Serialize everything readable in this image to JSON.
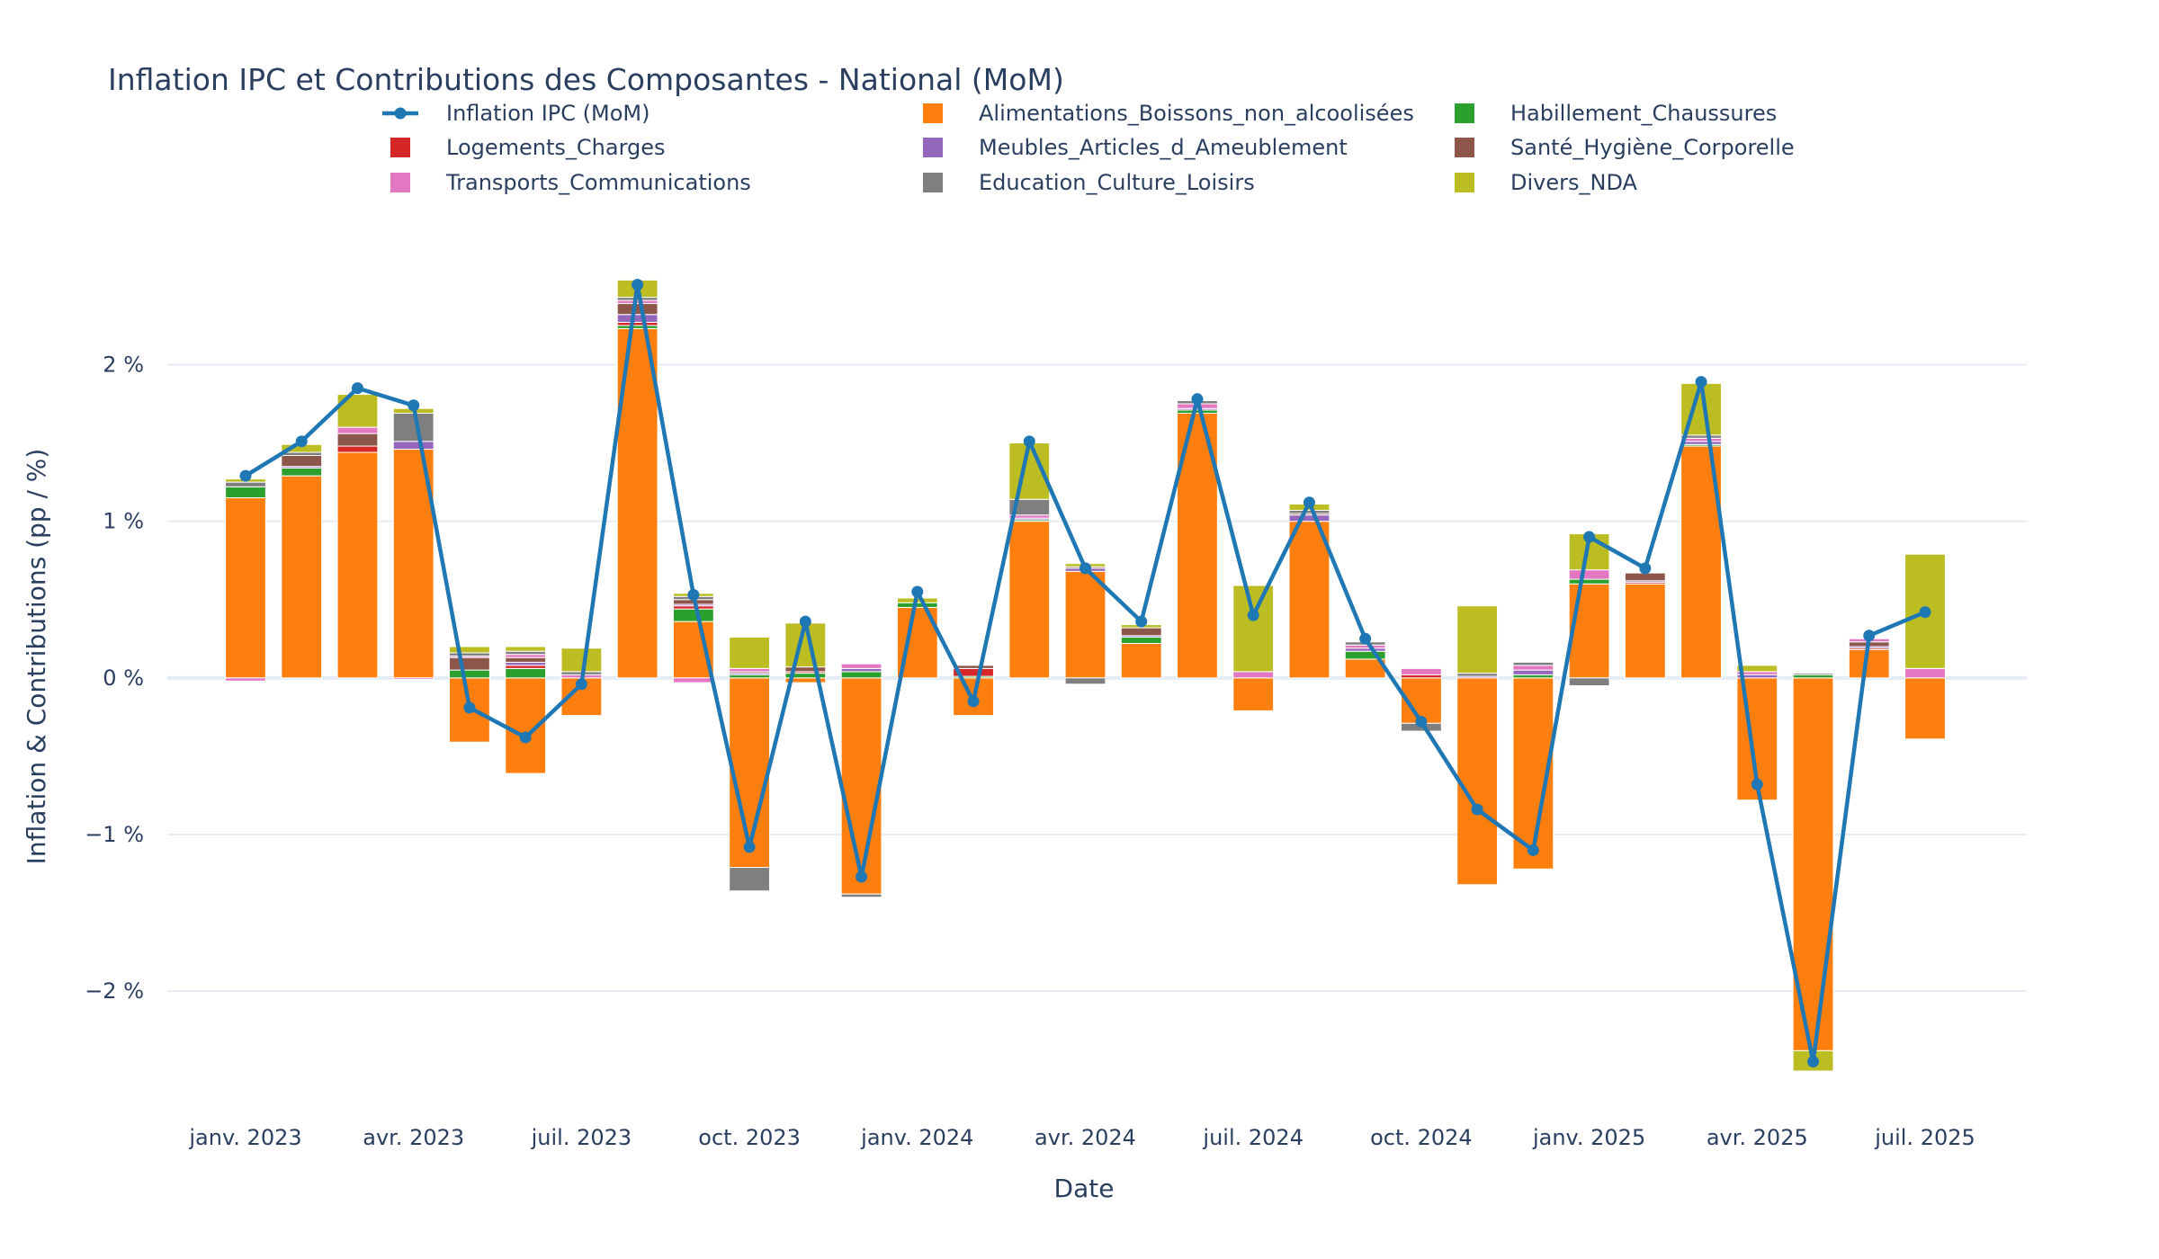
{
  "chart_data": {
    "type": "bar",
    "barmode": "relative",
    "title": "Inflation IPC et Contributions des Composantes - National (MoM)",
    "xlabel": "Date",
    "ylabel": "Inflation & Contributions (pp / %)",
    "ylim": [
      -2.82,
      2.95
    ],
    "y_ticks": [
      {
        "value": 2,
        "label": "2 %"
      },
      {
        "value": 1,
        "label": "1 %"
      },
      {
        "value": 0,
        "label": "0 %"
      },
      {
        "value": -1,
        "label": "−1 %"
      },
      {
        "value": -2,
        "label": "−2 %"
      }
    ],
    "x": [
      "2023-01",
      "2023-02",
      "2023-03",
      "2023-04",
      "2023-05",
      "2023-06",
      "2023-07",
      "2023-08",
      "2023-09",
      "2023-10",
      "2023-11",
      "2023-12",
      "2024-01",
      "2024-02",
      "2024-03",
      "2024-04",
      "2024-05",
      "2024-06",
      "2024-07",
      "2024-08",
      "2024-09",
      "2024-10",
      "2024-11",
      "2024-12",
      "2025-01",
      "2025-02",
      "2025-03",
      "2025-04",
      "2025-05",
      "2025-06",
      "2025-07"
    ],
    "x_ticks": [
      {
        "x": "2023-01",
        "label": "janv. 2023"
      },
      {
        "x": "2023-04",
        "label": "avr. 2023"
      },
      {
        "x": "2023-07",
        "label": "juil. 2023"
      },
      {
        "x": "2023-10",
        "label": "oct. 2023"
      },
      {
        "x": "2024-01",
        "label": "janv. 2024"
      },
      {
        "x": "2024-04",
        "label": "avr. 2024"
      },
      {
        "x": "2024-07",
        "label": "juil. 2024"
      },
      {
        "x": "2024-10",
        "label": "oct. 2024"
      },
      {
        "x": "2025-01",
        "label": "janv. 2025"
      },
      {
        "x": "2025-04",
        "label": "avr. 2025"
      },
      {
        "x": "2025-07",
        "label": "juil. 2025"
      }
    ],
    "line": {
      "name": "Inflation IPC (MoM)",
      "color": "#1f77b4",
      "values": [
        1.29,
        1.51,
        1.85,
        1.74,
        -0.19,
        -0.38,
        -0.04,
        2.51,
        0.53,
        -1.08,
        0.36,
        -1.27,
        0.55,
        -0.15,
        1.51,
        0.7,
        0.36,
        1.78,
        0.4,
        1.12,
        0.25,
        -0.28,
        -0.84,
        -1.1,
        0.9,
        0.7,
        1.89,
        -0.68,
        -2.45,
        0.27,
        0.42
      ]
    },
    "series": [
      {
        "name": "Alimentations_Boissons_non_alcoolisées",
        "color": "#ff7f0e",
        "values": [
          1.15,
          1.29,
          1.44,
          1.46,
          -0.41,
          -0.61,
          -0.24,
          2.23,
          0.36,
          -1.21,
          -0.03,
          -1.38,
          0.45,
          -0.24,
          1.0,
          0.68,
          0.22,
          1.69,
          -0.21,
          1.0,
          0.12,
          -0.29,
          -1.32,
          -1.22,
          0.6,
          0.6,
          1.48,
          -0.78,
          -2.38,
          0.18,
          -0.39
        ]
      },
      {
        "name": "Habillement_Chaussures",
        "color": "#2ca02c",
        "values": [
          0.07,
          0.05,
          0.0,
          0.0,
          0.05,
          0.06,
          0.0,
          0.02,
          0.08,
          0.02,
          0.03,
          0.04,
          0.03,
          0.01,
          0.01,
          0.0,
          0.04,
          0.02,
          0.0,
          0.0,
          0.05,
          0.0,
          0.0,
          0.02,
          0.03,
          0.0,
          0.01,
          0.0,
          0.02,
          0.0,
          0.0
        ]
      },
      {
        "name": "Logements_Charges",
        "color": "#d62728",
        "values": [
          0.0,
          0.0,
          0.04,
          0.0,
          0.0,
          0.02,
          0.0,
          0.02,
          0.02,
          0.0,
          0.01,
          0.0,
          0.0,
          0.05,
          0.0,
          0.0,
          0.0,
          0.0,
          0.0,
          0.0,
          0.0,
          0.02,
          0.0,
          0.0,
          0.0,
          0.01,
          0.0,
          0.0,
          0.0,
          0.01,
          0.0
        ]
      },
      {
        "name": "Meubles_Articles_d_Ameublement",
        "color": "#9467bd",
        "values": [
          0.0,
          0.01,
          0.0,
          0.05,
          0.0,
          0.02,
          0.0,
          0.05,
          0.01,
          0.01,
          0.0,
          0.02,
          0.0,
          0.0,
          0.01,
          0.02,
          0.01,
          0.01,
          0.0,
          0.04,
          0.02,
          0.0,
          0.01,
          0.03,
          0.0,
          0.01,
          0.02,
          0.02,
          0.0,
          0.01,
          0.0
        ]
      },
      {
        "name": "Santé_Hygiène_Corporelle",
        "color": "#8c564b",
        "values": [
          0.0,
          0.07,
          0.08,
          0.0,
          0.08,
          0.03,
          0.0,
          0.07,
          0.03,
          0.01,
          0.03,
          0.0,
          0.0,
          0.02,
          0.0,
          0.01,
          0.05,
          0.0,
          0.0,
          0.01,
          0.0,
          0.0,
          0.0,
          0.0,
          0.0,
          0.05,
          0.0,
          0.0,
          0.0,
          0.03,
          0.0
        ]
      },
      {
        "name": "Transports_Communications",
        "color": "#e377c2",
        "values": [
          -0.02,
          0.0,
          0.04,
          -0.01,
          0.01,
          0.02,
          0.02,
          0.02,
          -0.03,
          0.02,
          0.0,
          0.03,
          0.0,
          0.0,
          0.02,
          0.0,
          0.0,
          0.03,
          0.04,
          0.0,
          0.02,
          0.04,
          0.0,
          0.03,
          0.06,
          0.0,
          0.02,
          0.02,
          0.0,
          0.02,
          0.06
        ]
      },
      {
        "name": "Education_Culture_Loisirs",
        "color": "#7f7f7f",
        "values": [
          0.03,
          0.02,
          0.0,
          0.18,
          0.02,
          0.02,
          0.02,
          0.02,
          0.02,
          -0.15,
          0.0,
          -0.02,
          0.0,
          0.0,
          0.1,
          -0.04,
          0.0,
          0.02,
          0.0,
          0.02,
          0.02,
          -0.05,
          0.02,
          0.02,
          -0.05,
          0.0,
          0.02,
          0.0,
          0.01,
          0.0,
          0.0
        ]
      },
      {
        "name": "Divers_NDA",
        "color": "#bcbd22",
        "values": [
          0.02,
          0.05,
          0.21,
          0.03,
          0.04,
          0.03,
          0.15,
          0.11,
          0.02,
          0.2,
          0.28,
          0.0,
          0.03,
          0.0,
          0.36,
          0.02,
          0.02,
          0.0,
          0.55,
          0.04,
          0.0,
          0.0,
          0.43,
          0.0,
          0.23,
          0.0,
          0.33,
          0.04,
          -0.13,
          0.0,
          0.73
        ]
      }
    ],
    "legend_placement": "top",
    "grid": true
  }
}
